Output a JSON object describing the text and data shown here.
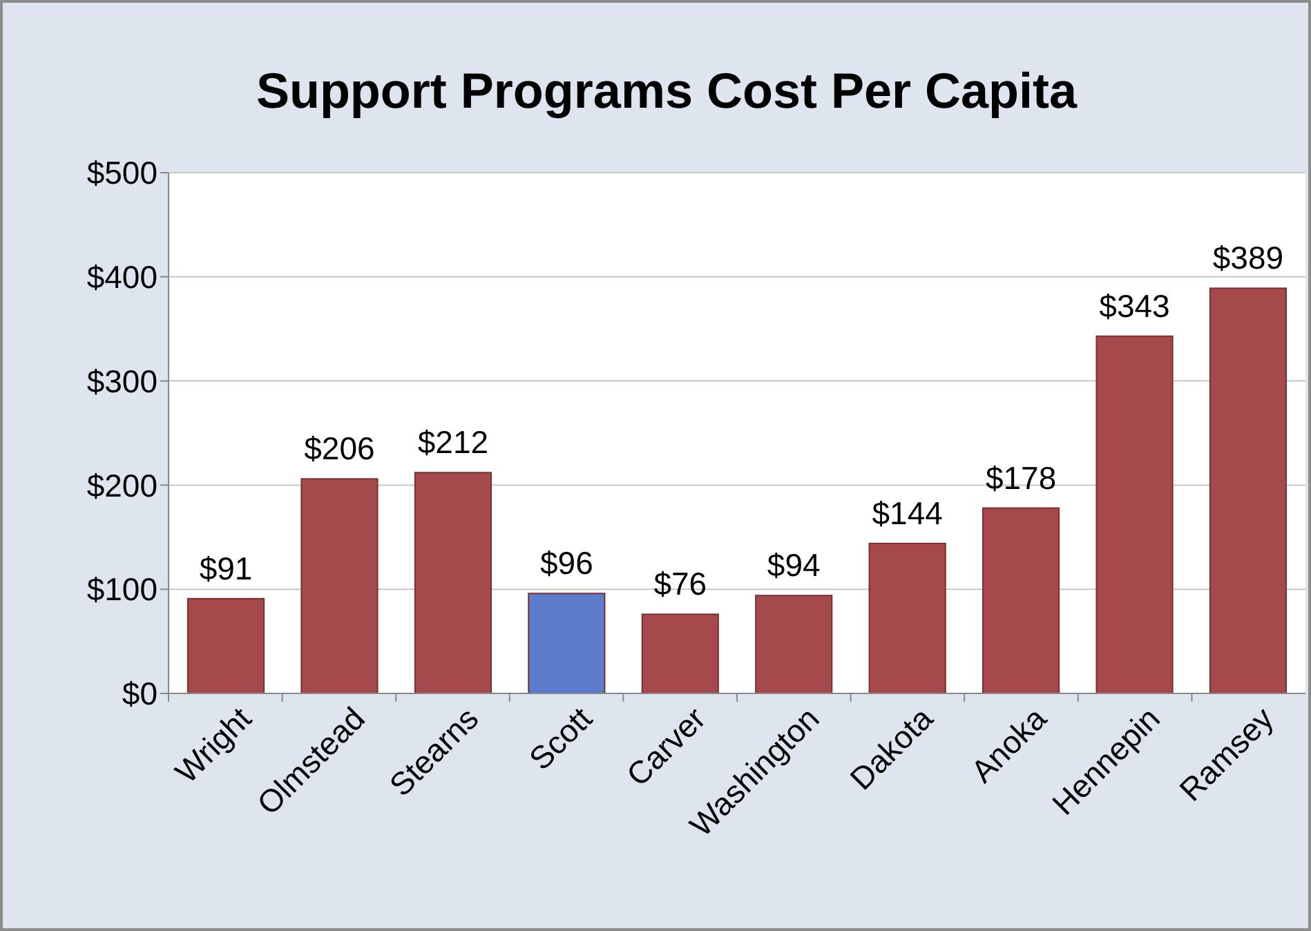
{
  "chart_data": {
    "type": "bar",
    "title": "Support Programs Cost Per Capita",
    "categories": [
      "Wright",
      "Olmstead",
      "Stearns",
      "Scott",
      "Carver",
      "Washington",
      "Dakota",
      "Anoka",
      "Hennepin",
      "Ramsey"
    ],
    "values": [
      91,
      206,
      212,
      96,
      76,
      94,
      144,
      178,
      343,
      389
    ],
    "colors": [
      "#a5494c",
      "#a5494c",
      "#a5494c",
      "#5a7ccb",
      "#a5494c",
      "#a5494c",
      "#a5494c",
      "#a5494c",
      "#a5494c",
      "#a5494c"
    ],
    "value_labels": [
      "$91",
      "$206",
      "$212",
      "$96",
      "$76",
      "$94",
      "$144",
      "$178",
      "$343",
      "$389"
    ],
    "ylim": [
      0,
      500
    ],
    "yticks": [
      {
        "value": 0,
        "label": "$0"
      },
      {
        "value": 100,
        "label": "$100"
      },
      {
        "value": 200,
        "label": "$200"
      },
      {
        "value": 300,
        "label": "$300"
      },
      {
        "value": 400,
        "label": "$400"
      },
      {
        "value": 500,
        "label": "$500"
      }
    ],
    "grid": "y"
  }
}
